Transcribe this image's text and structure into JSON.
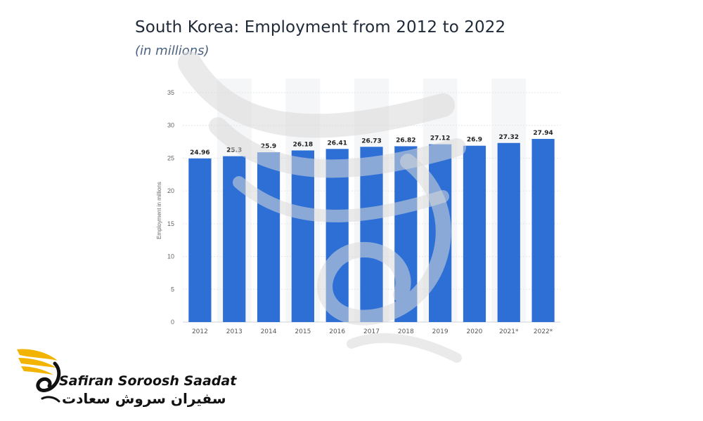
{
  "header": {
    "title": "South Korea: Employment from 2012 to 2022",
    "subtitle": "(in millions)"
  },
  "brand": {
    "name_en": "Safiran Soroosh Saadat",
    "name_fa": "سفیران سروش سعادت",
    "colors": {
      "wing": "#f2b400",
      "text": "#111111"
    }
  },
  "chart_data": {
    "type": "bar",
    "title": "South Korea: Employment from 2012 to 2022",
    "subtitle": "(in millions)",
    "xlabel": "",
    "ylabel": "Employment in millions",
    "categories": [
      "2012",
      "2013",
      "2014",
      "2015",
      "2016",
      "2017",
      "2018",
      "2019",
      "2020",
      "2021*",
      "2022*"
    ],
    "values": [
      24.96,
      25.3,
      25.9,
      26.18,
      26.41,
      26.73,
      26.82,
      27.12,
      26.9,
      27.32,
      27.94
    ],
    "value_labels": [
      "24.96",
      "25.3",
      "25.9",
      "26.18",
      "26.41",
      "26.73",
      "26.82",
      "27.12",
      "26.9",
      "27.32",
      "27.94"
    ],
    "ylim": [
      0,
      35
    ],
    "yticks": [
      "0",
      "5",
      "10",
      "15",
      "20",
      "25",
      "30",
      "35"
    ],
    "grid": true,
    "legend": "none",
    "bar_color": "#2e6fd6"
  }
}
